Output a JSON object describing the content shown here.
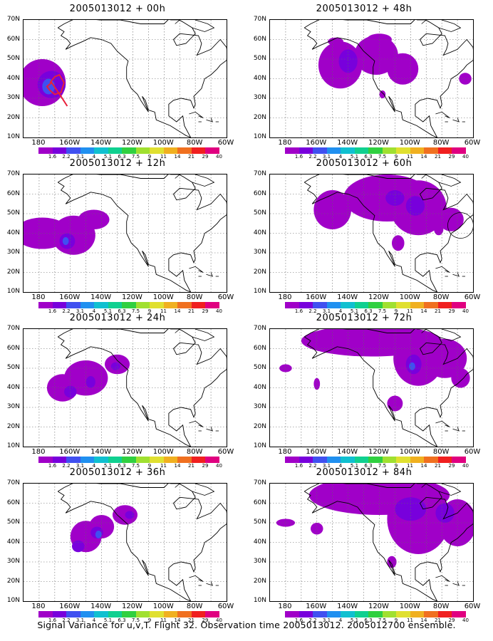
{
  "panels": [
    {
      "title": "2005013012 + 00h"
    },
    {
      "title": "2005013012 + 48h"
    },
    {
      "title": "2005013012 + 12h"
    },
    {
      "title": "2005013012 + 60h"
    },
    {
      "title": "2005013012 + 24h"
    },
    {
      "title": "2005013012 + 72h"
    },
    {
      "title": "2005013012 + 36h"
    },
    {
      "title": "2005013012 + 84h"
    }
  ],
  "lat_labels": [
    "70N",
    "60N",
    "50N",
    "40N",
    "30N",
    "20N",
    "10N"
  ],
  "lon_labels": [
    "180",
    "160W",
    "140W",
    "120W",
    "100W",
    "80W",
    "60W"
  ],
  "colorbar": {
    "labels": [
      "1.6",
      "2.2",
      "3.1",
      "4",
      "5.1",
      "6.3",
      "7.5",
      "9",
      "11",
      "14",
      "21",
      "29",
      "40"
    ],
    "colors": [
      "#a000c8",
      "#7800dc",
      "#4050f0",
      "#2090f0",
      "#10c0d0",
      "#10d090",
      "#30d040",
      "#a0e030",
      "#e0e030",
      "#f0b020",
      "#f07020",
      "#f02020",
      "#e00080"
    ]
  },
  "footer": "Signal Variance for u,v,T. Flight 32. Observation time 2005013012. 2005012700 ensemble."
}
